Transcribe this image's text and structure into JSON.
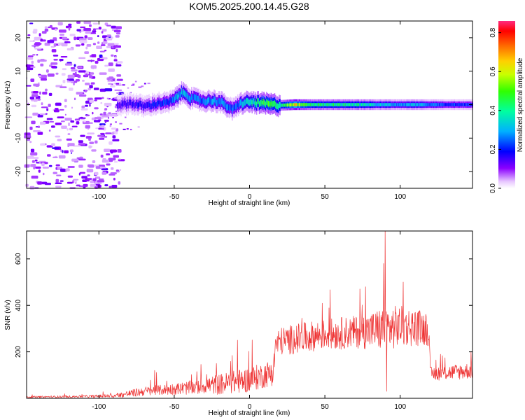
{
  "title": "KOM5.2025.200.14.45.G28",
  "colors": {
    "snr_line": "#ee3333",
    "axis": "#000000"
  },
  "chart_data": [
    {
      "type": "heatmap",
      "xlabel": "Height of straight line (km)",
      "ylabel": "Frequency (Hz)",
      "xlim": [
        -148,
        148
      ],
      "ylim": [
        -25,
        25
      ],
      "x_ticks": [
        -100,
        -50,
        0,
        50,
        100
      ],
      "y_ticks": [
        -20,
        -10,
        0,
        10,
        20
      ],
      "colorbar": {
        "label": "Normalized spectral amplitude",
        "range": [
          0,
          0.86
        ],
        "ticks": [
          0.0,
          0.2,
          0.4,
          0.6,
          0.8
        ],
        "colormap": "rainbow"
      },
      "ridge": {
        "description_points_xy": [
          [
            -85,
            0
          ],
          [
            -80,
            0.5
          ],
          [
            -75,
            0
          ],
          [
            -70,
            -0.5
          ],
          [
            -65,
            0
          ],
          [
            -60,
            0.5
          ],
          [
            -55,
            0.5
          ],
          [
            -50,
            1.5
          ],
          [
            -47,
            3
          ],
          [
            -45,
            3.5
          ],
          [
            -42,
            3.2
          ],
          [
            -40,
            2
          ],
          [
            -35,
            1.5
          ],
          [
            -30,
            1
          ],
          [
            -25,
            1.2
          ],
          [
            -20,
            0.8
          ],
          [
            -15,
            -0.5
          ],
          [
            -12,
            -1.5
          ],
          [
            -10,
            -1.2
          ],
          [
            -8,
            0
          ],
          [
            -5,
            0.5
          ],
          [
            0,
            0.8
          ],
          [
            5,
            0.5
          ],
          [
            10,
            0.3
          ],
          [
            15,
            0
          ],
          [
            20,
            -0.2
          ],
          [
            30,
            0
          ],
          [
            40,
            0
          ],
          [
            50,
            0
          ],
          [
            60,
            0
          ],
          [
            70,
            0
          ],
          [
            80,
            0
          ],
          [
            90,
            0
          ],
          [
            100,
            0
          ],
          [
            110,
            0
          ],
          [
            120,
            0
          ],
          [
            130,
            0
          ],
          [
            140,
            0
          ],
          [
            148,
            0
          ]
        ],
        "amplitude": [
          [
            -85,
            0.2
          ],
          [
            -70,
            0.25
          ],
          [
            -55,
            0.3
          ],
          [
            -45,
            0.45
          ],
          [
            -35,
            0.35
          ],
          [
            -20,
            0.4
          ],
          [
            -10,
            0.35
          ],
          [
            0,
            0.5
          ],
          [
            10,
            0.7
          ],
          [
            20,
            0.55
          ],
          [
            30,
            0.86
          ],
          [
            40,
            0.6
          ],
          [
            50,
            0.62
          ],
          [
            70,
            0.55
          ],
          [
            80,
            0.5
          ],
          [
            90,
            0.45
          ],
          [
            100,
            0.4
          ],
          [
            110,
            0.45
          ],
          [
            120,
            0.38
          ],
          [
            130,
            0.33
          ],
          [
            148,
            0.3
          ]
        ]
      }
    },
    {
      "type": "line",
      "xlabel": "Height of straight line (km)",
      "ylabel": "SNR (v/v)",
      "xlim": [
        -148,
        148
      ],
      "ylim": [
        0,
        720
      ],
      "x_ticks": [
        -100,
        -50,
        0,
        50,
        100
      ],
      "y_ticks": [
        200,
        400,
        600
      ],
      "envelope": {
        "x": [
          -148,
          -110,
          -90,
          -80,
          -70,
          -60,
          -50,
          -40,
          -30,
          -20,
          -10,
          0,
          10,
          16,
          17,
          20,
          30,
          40,
          50,
          60,
          70,
          80,
          90,
          100,
          110,
          119,
          120,
          130,
          140,
          148
        ],
        "base": [
          5,
          8,
          10,
          20,
          30,
          35,
          40,
          45,
          55,
          60,
          70,
          80,
          100,
          115,
          230,
          245,
          255,
          265,
          275,
          280,
          285,
          290,
          300,
          310,
          305,
          300,
          105,
          110,
          115,
          120
        ],
        "noise": [
          4,
          5,
          8,
          15,
          20,
          22,
          25,
          30,
          35,
          45,
          50,
          55,
          55,
          60,
          60,
          60,
          65,
          65,
          65,
          70,
          70,
          80,
          100,
          90,
          80,
          75,
          30,
          32,
          35,
          35
        ]
      },
      "spikes": [
        {
          "x": -63,
          "y": 120
        },
        {
          "x": -55,
          "y": 75
        },
        {
          "x": -35,
          "y": 115
        },
        {
          "x": -22,
          "y": 150
        },
        {
          "x": -8,
          "y": 250
        },
        {
          "x": 77,
          "y": 480
        },
        {
          "x": 89,
          "y": 580
        },
        {
          "x": 90,
          "y": 720
        },
        {
          "x": 91,
          "y": 30
        },
        {
          "x": 102,
          "y": 500
        }
      ]
    }
  ]
}
